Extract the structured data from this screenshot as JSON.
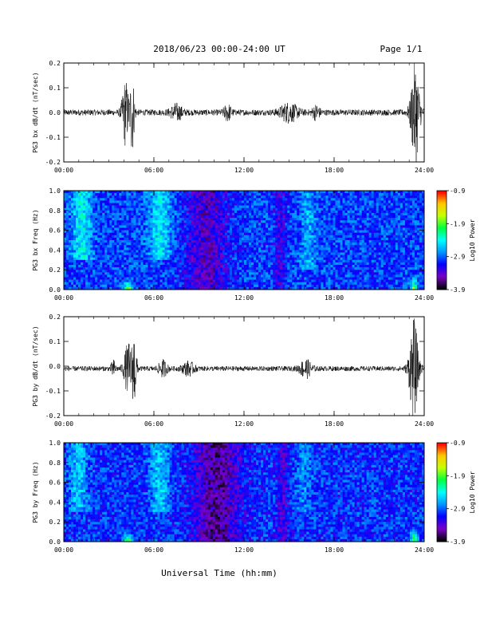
{
  "header": {
    "title": "2018/06/23  00:00-24:00 UT",
    "page": "Page 1/1"
  },
  "footer": {
    "xlabel": "Universal Time (hh:mm)"
  },
  "colors": {
    "trace": "#000000",
    "colorbar_stops": [
      "#000000",
      "#7a00c8",
      "#0000ff",
      "#0096ff",
      "#00ffff",
      "#00ff40",
      "#c8ff00",
      "#ffc800",
      "#ff0000"
    ]
  },
  "chart_data": [
    {
      "type": "line",
      "ylabel": "PG3 bx dB/dt (nT/sec)",
      "xticks": [
        "00:00",
        "06:00",
        "12:00",
        "18:00",
        "24:00"
      ],
      "xlim": [
        0,
        24
      ],
      "ylim": [
        -0.2,
        0.2
      ],
      "yticks": [
        "0.2",
        "0.1",
        "0.0",
        "-0.1",
        "-0.2"
      ],
      "baseline": 0.0,
      "noise_amplitude": 0.012,
      "bursts": [
        {
          "t": 4.1,
          "width": 0.45,
          "amp": 0.13
        },
        {
          "t": 4.55,
          "width": 0.3,
          "amp": 0.16
        },
        {
          "t": 7.5,
          "width": 0.8,
          "amp": 0.03
        },
        {
          "t": 10.9,
          "width": 0.5,
          "amp": 0.03
        },
        {
          "t": 15.0,
          "width": 1.2,
          "amp": 0.035
        },
        {
          "t": 16.8,
          "width": 0.5,
          "amp": 0.025
        },
        {
          "t": 23.4,
          "width": 0.6,
          "amp": 0.2
        }
      ]
    },
    {
      "type": "heatmap",
      "ylabel": "PG3 bx Freq (Hz)",
      "xticks": [
        "00:00",
        "06:00",
        "12:00",
        "18:00",
        "24:00"
      ],
      "xlim": [
        0,
        24
      ],
      "ylim": [
        0,
        1.0
      ],
      "yticks": [
        "1.0",
        "0.8",
        "0.6",
        "0.4",
        "0.2",
        "0.0"
      ],
      "colorbar": {
        "label": "Log10 Power",
        "ticks": [
          "-0.9",
          "-1.9",
          "-2.9",
          "-3.9"
        ],
        "range": [
          -3.9,
          -0.9
        ]
      },
      "baseline_log_power": -3.0,
      "enhancements": [
        {
          "t": 1.2,
          "width": 1.3,
          "f_low": 0.3,
          "f_high": 1.0,
          "delta": 0.55
        },
        {
          "t": 6.4,
          "width": 1.5,
          "f_low": 0.3,
          "f_high": 1.0,
          "delta": 0.5
        },
        {
          "t": 16.3,
          "width": 1.0,
          "f_low": 0.2,
          "f_high": 1.0,
          "delta": 0.3
        },
        {
          "t": 4.3,
          "width": 0.5,
          "f_low": 0.0,
          "f_high": 0.1,
          "delta": 1.3
        },
        {
          "t": 23.3,
          "width": 0.4,
          "f_low": 0.0,
          "f_high": 0.15,
          "delta": 1.4
        }
      ],
      "depressions": [
        {
          "t": 9.5,
          "width": 2.8,
          "f_low": 0.0,
          "f_high": 1.0,
          "delta": -0.45
        },
        {
          "t": 14.4,
          "width": 0.8,
          "f_low": 0.0,
          "f_high": 1.0,
          "delta": -0.3
        }
      ]
    },
    {
      "type": "line",
      "ylabel": "PG3 by dB/dt (nT/sec)",
      "xticks": [
        "00:00",
        "06:00",
        "12:00",
        "18:00",
        "24:00"
      ],
      "xlim": [
        0,
        24
      ],
      "ylim": [
        -0.2,
        0.2
      ],
      "yticks": [
        "0.2",
        "0.1",
        "0.0",
        "-0.1",
        "-0.2"
      ],
      "baseline": -0.01,
      "noise_amplitude": 0.01,
      "bursts": [
        {
          "t": 3.3,
          "width": 0.3,
          "amp": 0.03
        },
        {
          "t": 4.3,
          "width": 0.6,
          "amp": 0.1
        },
        {
          "t": 4.7,
          "width": 0.3,
          "amp": 0.13
        },
        {
          "t": 6.6,
          "width": 0.6,
          "amp": 0.03
        },
        {
          "t": 8.3,
          "width": 0.8,
          "amp": 0.025
        },
        {
          "t": 16.1,
          "width": 0.8,
          "amp": 0.035
        },
        {
          "t": 23.3,
          "width": 0.6,
          "amp": 0.2
        }
      ]
    },
    {
      "type": "heatmap",
      "ylabel": "PG3 by Freq (Hz)",
      "xticks": [
        "00:00",
        "06:00",
        "12:00",
        "18:00",
        "24:00"
      ],
      "xlim": [
        0,
        24
      ],
      "ylim": [
        0,
        1.0
      ],
      "yticks": [
        "1.0",
        "0.8",
        "0.6",
        "0.4",
        "0.2",
        "0.0"
      ],
      "colorbar": {
        "label": "Log10 Power",
        "ticks": [
          "-0.9",
          "-1.9",
          "-2.9",
          "-3.9"
        ],
        "range": [
          -3.9,
          -0.9
        ]
      },
      "baseline_log_power": -3.05,
      "enhancements": [
        {
          "t": 1.0,
          "width": 1.2,
          "f_low": 0.3,
          "f_high": 1.0,
          "delta": 0.45
        },
        {
          "t": 6.4,
          "width": 1.3,
          "f_low": 0.3,
          "f_high": 1.0,
          "delta": 0.45
        },
        {
          "t": 16.0,
          "width": 1.0,
          "f_low": 0.3,
          "f_high": 1.0,
          "delta": 0.25
        },
        {
          "t": 4.3,
          "width": 0.6,
          "f_low": 0.0,
          "f_high": 0.1,
          "delta": 1.3
        },
        {
          "t": 23.3,
          "width": 0.4,
          "f_low": 0.0,
          "f_high": 0.15,
          "delta": 1.4
        }
      ],
      "depressions": [
        {
          "t": 10.2,
          "width": 3.0,
          "f_low": 0.0,
          "f_high": 1.0,
          "delta": -0.55
        },
        {
          "t": 14.6,
          "width": 0.8,
          "f_low": 0.0,
          "f_high": 1.0,
          "delta": -0.3
        }
      ]
    }
  ]
}
